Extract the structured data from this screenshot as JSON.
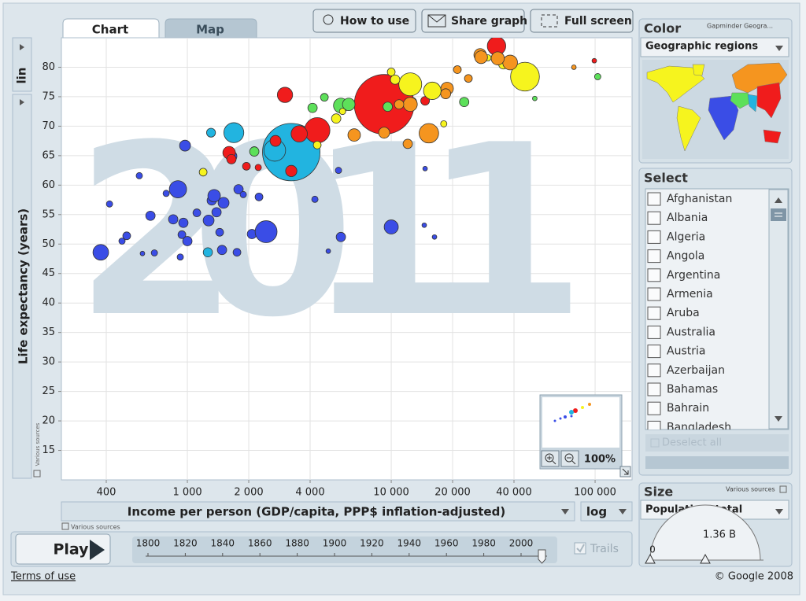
{
  "tabs": [
    "Chart",
    "Map"
  ],
  "buttons": [
    "How to use",
    "Share graph",
    "Full screen"
  ],
  "chart_data": {
    "type": "scatter",
    "watermark": "2011",
    "xlabel": "Income per person (GDP/capita, PPP$ inflation-adjusted)",
    "ylabel": "Life expectancy (years)",
    "x_scale_label": "log",
    "y_scale_label": "lin",
    "x_source": "Various sources",
    "y_source": "Various sources",
    "log_x": true,
    "grid": true,
    "xlim": [
      241,
      151800
    ],
    "ylim": [
      10,
      85
    ],
    "xticks": [
      400,
      {
        "value": 1000,
        "label": "1 000"
      },
      {
        "value": 2000,
        "label": "2 000"
      },
      {
        "value": 4000,
        "label": "4 000"
      },
      {
        "value": 10000,
        "label": "10 000"
      },
      {
        "value": 20000,
        "label": "20 000"
      },
      {
        "value": 40000,
        "label": "40 000"
      },
      {
        "value": 100000,
        "label": "100 000"
      }
    ],
    "yticks": [
      15,
      20,
      25,
      30,
      35,
      40,
      45,
      50,
      55,
      60,
      65,
      70,
      75,
      80
    ],
    "series": [
      {
        "color": "#22b4e0",
        "x": [
          3233,
          2683,
          1690,
          1306,
          1260,
          2129
        ],
        "values": [
          65.6,
          65.9,
          68.9,
          68.9,
          48.6,
          65.9
        ],
        "sizes": [
          1241,
          177,
          150,
          30,
          32,
          21
        ]
      },
      {
        "color": "#3a4de6",
        "x": [
          376,
          415,
          478,
          504,
          581,
          602,
          659,
          689,
          787,
          852,
          899,
          923,
          940,
          956,
          974,
          1000,
          1113,
          1271,
          1317,
          1353,
          1390,
          1505,
          1440,
          1479,
          1645,
          1751,
          1782,
          1880,
          2073,
          2433,
          2246,
          5662,
          4222,
          5512,
          4911,
          10000,
          14660,
          14520,
          16300
        ],
        "values": [
          48.6,
          56.8,
          50.5,
          51.4,
          61.6,
          48.4,
          54.8,
          48.5,
          58.6,
          54.2,
          59.3,
          47.8,
          51.6,
          53.6,
          66.7,
          50.5,
          55.3,
          54.0,
          57.4,
          58.2,
          55.4,
          57.0,
          52.0,
          49.0,
          64.9,
          48.6,
          59.3,
          58.4,
          51.7,
          52.1,
          58.0,
          51.2,
          57.6,
          62.5,
          48.8,
          52.9,
          62.8,
          53.2,
          51.2
        ],
        "sizes": [
          92,
          15,
          15,
          23,
          15,
          8,
          33,
          15,
          15,
          33,
          112,
          15,
          23,
          33,
          45,
          33,
          23,
          45,
          33,
          59,
          33,
          45,
          23,
          33,
          45,
          23,
          33,
          15,
          33,
          181,
          23,
          33,
          15,
          15,
          8,
          75,
          8,
          8,
          8
        ]
      },
      {
        "color": "#f01c1c",
        "x": [
          9232,
          4335,
          3012,
          3537,
          1602,
          2707,
          1948,
          2227,
          32850,
          14660,
          3233,
          1645,
          99100,
          47900
        ],
        "values": [
          73.7,
          69.3,
          75.3,
          68.7,
          65.5,
          67.5,
          63.2,
          63.0,
          83.6,
          74.3,
          62.4,
          64.4,
          81.1,
          78.3
        ],
        "sizes": [
          1344,
          242,
          88,
          100,
          59,
          45,
          23,
          15,
          128,
          29,
          48,
          33,
          8,
          15
        ]
      },
      {
        "color": "#5de05a",
        "x": [
          5662,
          2129,
          6188,
          9610,
          22800,
          50600,
          103000,
          4700,
          4112
        ],
        "values": [
          73.5,
          65.7,
          73.7,
          73.3,
          74.1,
          74.7,
          78.4,
          74.9,
          73.1
        ],
        "sizes": [
          82,
          33,
          59,
          33,
          33,
          8,
          15,
          23,
          33
        ]
      },
      {
        "color": "#f6f41e",
        "x": [
          45300,
          12400,
          15900,
          10450,
          10000,
          5370,
          4335,
          1195,
          12640,
          35500,
          18100,
          5770,
          29800
        ],
        "values": [
          78.4,
          77.1,
          76.0,
          77.9,
          79.2,
          71.3,
          66.8,
          62.2,
          74.1,
          80.5,
          70.4,
          72.5,
          81.6
        ],
        "sizes": [
          312,
          197,
          115,
          33,
          23,
          33,
          23,
          23,
          33,
          34,
          15,
          15,
          15
        ]
      },
      {
        "color": "#f5951f",
        "x": [
          15300,
          6580,
          12050,
          18800,
          23900,
          27300,
          38300,
          33300,
          27600,
          18500,
          12400,
          21100,
          78700,
          9232,
          10930
        ],
        "values": [
          68.8,
          68.5,
          67.0,
          76.4,
          78.1,
          82.1,
          80.8,
          81.5,
          81.7,
          75.5,
          73.7,
          79.6,
          80.0,
          68.9,
          73.7
        ],
        "sizes": [
          143,
          59,
          33,
          59,
          23,
          59,
          82,
          65,
          61,
          38,
          74,
          23,
          8,
          46,
          33
        ]
      }
    ]
  },
  "zoom_label": "100%",
  "color_panel": {
    "title": "Color",
    "source": "Gapminder Geogra...",
    "dropdown": "Geographic regions"
  },
  "select_panel": {
    "title": "Select",
    "countries": [
      "Afghanistan",
      "Albania",
      "Algeria",
      "Angola",
      "Argentina",
      "Armenia",
      "Aruba",
      "Australia",
      "Austria",
      "Azerbaijan",
      "Bahamas",
      "Bahrain",
      "Bangladesh"
    ],
    "deselect": "Deselect all"
  },
  "size_panel": {
    "title": "Size",
    "source": "Various sources",
    "dropdown": "Population, total",
    "min_label": "0",
    "max_label": "1.36 B"
  },
  "timeline": {
    "play": "Play",
    "years": [
      1800,
      1820,
      1840,
      1860,
      1880,
      1900,
      1920,
      1940,
      1960,
      1980,
      2000
    ],
    "trails": "Trails"
  },
  "footer": {
    "terms": "Terms of use",
    "copyright": "© Google 2008"
  }
}
